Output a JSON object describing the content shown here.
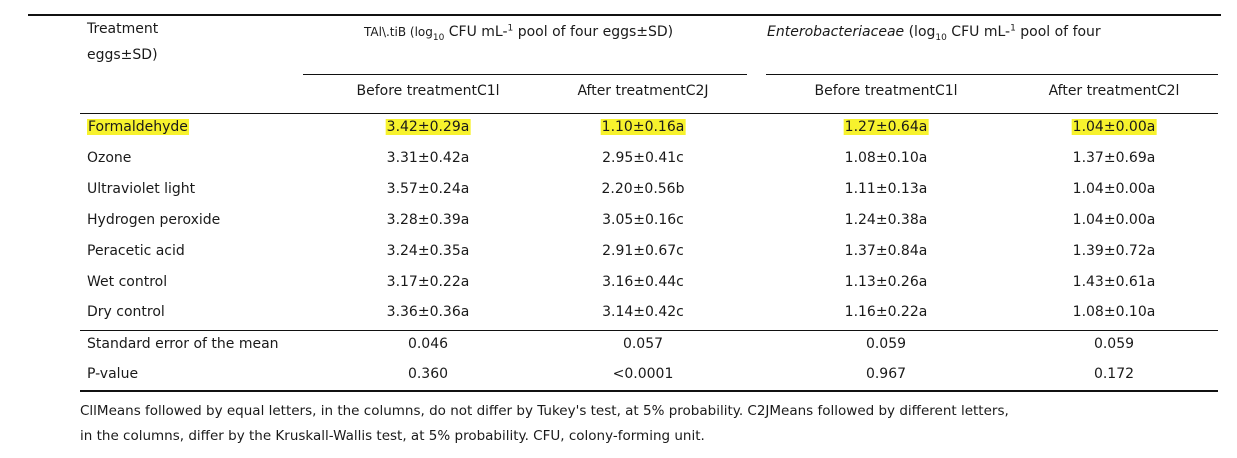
{
  "header": {
    "first_col_line1": "Treatment",
    "first_col_line2": "eggs±SD)",
    "group1_a": "TAl\\.tiB (log",
    "group1_sub": "10",
    "group1_b": " CFU mL-",
    "group1_sup": "1",
    "group1_c": " pool of four  eggs±SD)",
    "group2_name": "Enterobacteriaceae",
    "group2_a": " (log",
    "group2_sub": "10",
    "group2_b": " CFU mL-",
    "group2_sup": "1",
    "group2_c": " pool of four",
    "sub_columns": [
      "Before treatmentC1l",
      "After treatmentC2J",
      "Before treatmentC1l",
      "After treatmentC2l"
    ]
  },
  "rows": [
    {
      "name": "Formaldehyde",
      "values": [
        "3.42±0.29a",
        "1.10±0.16a",
        "1.27±0.64a",
        "1.04±0.00a"
      ],
      "highlight": true
    },
    {
      "name": "Ozone",
      "values": [
        "3.31±0.42a",
        "2.95±0.41c",
        "1.08±0.10a",
        "1.37±0.69a"
      ]
    },
    {
      "name": "Ultraviolet light",
      "values": [
        "3.57±0.24a",
        "2.20±0.56b",
        "1.11±0.13a",
        "1.04±0.00a"
      ]
    },
    {
      "name": "Hydrogen  peroxide",
      "values": [
        "3.28±0.39a",
        "3.05±0.16c",
        "1.24±0.38a",
        "1.04±0.00a"
      ]
    },
    {
      "name": "Peracetic  acid",
      "values": [
        "3.24±0.35a",
        "2.91±0.67c",
        "1.37±0.84a",
        "1.39±0.72a"
      ]
    },
    {
      "name": "Wet  control",
      "values": [
        "3.17±0.22a",
        "3.16±0.44c",
        "1.13±0.26a",
        "1.43±0.61a"
      ]
    },
    {
      "name": "Dry  control",
      "values": [
        "3.36±0.36a",
        "3.14±0.42c",
        "1.16±0.22a",
        "1.08±0.10a"
      ]
    }
  ],
  "stats": [
    {
      "name": "Standard  error of the mean",
      "values": [
        "0.046",
        "0.057",
        "0.059",
        "0.059"
      ]
    },
    {
      "name": "P-value",
      "values": [
        "0.360",
        "<0.0001",
        "0.967",
        "0.172"
      ]
    }
  ],
  "footnote": {
    "line1": "CllMeans followed by equal  letters,  in the columns,  do not differ by Tukey's test,  at 5% probability. C2JMeans followed by different letters,",
    "line2": "in the columns, differ by the Kruskall-Wallis test, at 5% probability. CFU, colony-forming unit."
  },
  "colors": {
    "highlight": "#f7f22d",
    "rule": "#111111"
  }
}
